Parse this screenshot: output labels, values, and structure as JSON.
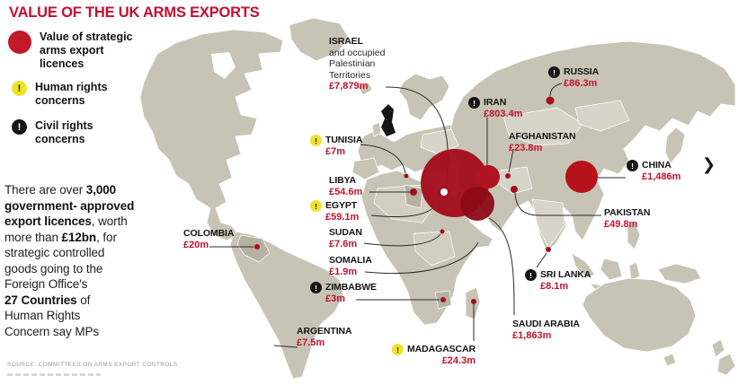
{
  "title": "VALUE OF THE UK ARMS EXPORTS",
  "legend": {
    "items": [
      {
        "id": "value",
        "icon": "red-circle-icon",
        "lines": [
          "Value of strategic",
          "arms export",
          "licences"
        ]
      },
      {
        "id": "human",
        "icon": "human-rights-icon",
        "lines": [
          "Human rights",
          "concerns"
        ]
      },
      {
        "id": "civil",
        "icon": "civil-rights-icon",
        "lines": [
          "Civil rights",
          "concerns"
        ]
      }
    ],
    "exclaim_glyph": "!"
  },
  "intro": {
    "segments": [
      {
        "text": "There are over ",
        "bold": false
      },
      {
        "text": "3,000",
        "bold": true,
        "br": true
      },
      {
        "text": "government- approved",
        "bold": true,
        "br": true
      },
      {
        "text": "export licences",
        "bold": true
      },
      {
        "text": ", worth",
        "br": true
      },
      {
        "text": "more than "
      },
      {
        "text": "£12bn",
        "bold": true
      },
      {
        "text": ", for",
        "br": true
      },
      {
        "text": "strategic controlled",
        "br": true
      },
      {
        "text": "goods going to the",
        "br": true
      },
      {
        "text": "Foreign Office's",
        "br": true
      },
      {
        "text": "27 Countries",
        "bold": true
      },
      {
        "text": " of",
        "br": true
      },
      {
        "text": "Human Rights",
        "br": true
      },
      {
        "text": "Concern say MPs"
      }
    ]
  },
  "source": "SOURCE: COMMITTEES ON ARMS EXPORT CONTROLS",
  "chevron_glyph": "❯",
  "countries": [
    {
      "id": "israel",
      "name": "ISRAEL",
      "sub": [
        "and occupied",
        "Palestinian",
        "Territories"
      ],
      "value": "£7,879m",
      "concern": null
    },
    {
      "id": "russia",
      "name": "RUSSIA",
      "value": "£86.3m",
      "concern": "civil"
    },
    {
      "id": "iran",
      "name": "IRAN",
      "value": "£803.4m",
      "concern": "civil"
    },
    {
      "id": "afghanistan",
      "name": "AFGHANISTAN",
      "value": "£23.8m",
      "concern": null
    },
    {
      "id": "china",
      "name": "CHINA",
      "value": "£1,486m",
      "concern": "civil"
    },
    {
      "id": "pakistan",
      "name": "PAKISTAN",
      "value": "£49.8m",
      "concern": null
    },
    {
      "id": "tunisia",
      "name": "TUNISIA",
      "value": "£7m",
      "concern": "human"
    },
    {
      "id": "libya",
      "name": "LIBYA",
      "value": "£54.6m",
      "concern": null
    },
    {
      "id": "egypt",
      "name": "EGYPT",
      "value": "£59.1m",
      "concern": "human"
    },
    {
      "id": "sudan",
      "name": "SUDAN",
      "value": "£7.6m",
      "concern": null
    },
    {
      "id": "somalia",
      "name": "SOMALIA",
      "value": "£1.9m",
      "concern": null
    },
    {
      "id": "zimbabwe",
      "name": "ZIMBABWE",
      "value": "£3m",
      "concern": "civil"
    },
    {
      "id": "colombia",
      "name": "COLOMBIA",
      "value": "£20m",
      "concern": null
    },
    {
      "id": "argentina",
      "name": "ARGENTINA",
      "value": "£7.5m",
      "concern": null
    },
    {
      "id": "madagascar",
      "name": "MADAGASCAR",
      "value": "£24.3m",
      "concern": "human"
    },
    {
      "id": "saudi_arabia",
      "name": "SAUDI ARABIA",
      "value": "£1,863m",
      "concern": null
    },
    {
      "id": "sri_lanka",
      "name": "SRI LANKA",
      "value": "£8.1m",
      "concern": "civil"
    }
  ],
  "colors": {
    "title_red": "#c60c30",
    "value_red": "#c2122e",
    "land": "#c7c4b5",
    "land_light": "#d7d5c9",
    "land_dark": "#b5b2a1",
    "bubble": "#a30d1c",
    "bubble_bright": "#b5121b",
    "bubble_dark": "#8d0a17",
    "human_badge_yellow": "#f0e229",
    "civil_badge_black": "#161616",
    "uk_black": "#161616"
  }
}
